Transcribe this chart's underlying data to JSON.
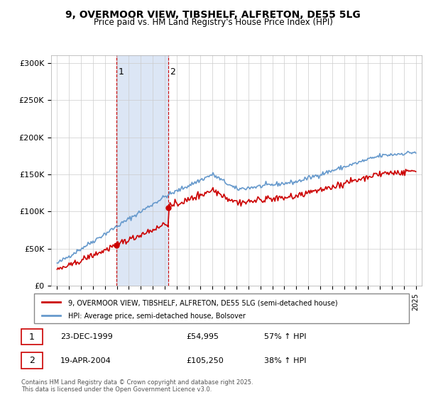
{
  "title1": "9, OVERMOOR VIEW, TIBSHELF, ALFRETON, DE55 5LG",
  "title2": "Price paid vs. HM Land Registry's House Price Index (HPI)",
  "legend_property": "9, OVERMOOR VIEW, TIBSHELF, ALFRETON, DE55 5LG (semi-detached house)",
  "legend_hpi": "HPI: Average price, semi-detached house, Bolsover",
  "property_color": "#cc0000",
  "hpi_color": "#6699cc",
  "shaded_color": "#dce6f5",
  "transaction1_date": "23-DEC-1999",
  "transaction1_price": "£54,995",
  "transaction1_hpi": "57% ↑ HPI",
  "transaction2_date": "19-APR-2004",
  "transaction2_price": "£105,250",
  "transaction2_hpi": "38% ↑ HPI",
  "ylabel_max": 300000,
  "footer": "Contains HM Land Registry data © Crown copyright and database right 2025.\nThis data is licensed under the Open Government Licence v3.0.",
  "xticks": [
    1995,
    1996,
    1997,
    1998,
    1999,
    2000,
    2001,
    2002,
    2003,
    2004,
    2005,
    2006,
    2007,
    2008,
    2009,
    2010,
    2011,
    2012,
    2013,
    2014,
    2015,
    2016,
    2017,
    2018,
    2019,
    2020,
    2021,
    2022,
    2023,
    2024,
    2025
  ]
}
